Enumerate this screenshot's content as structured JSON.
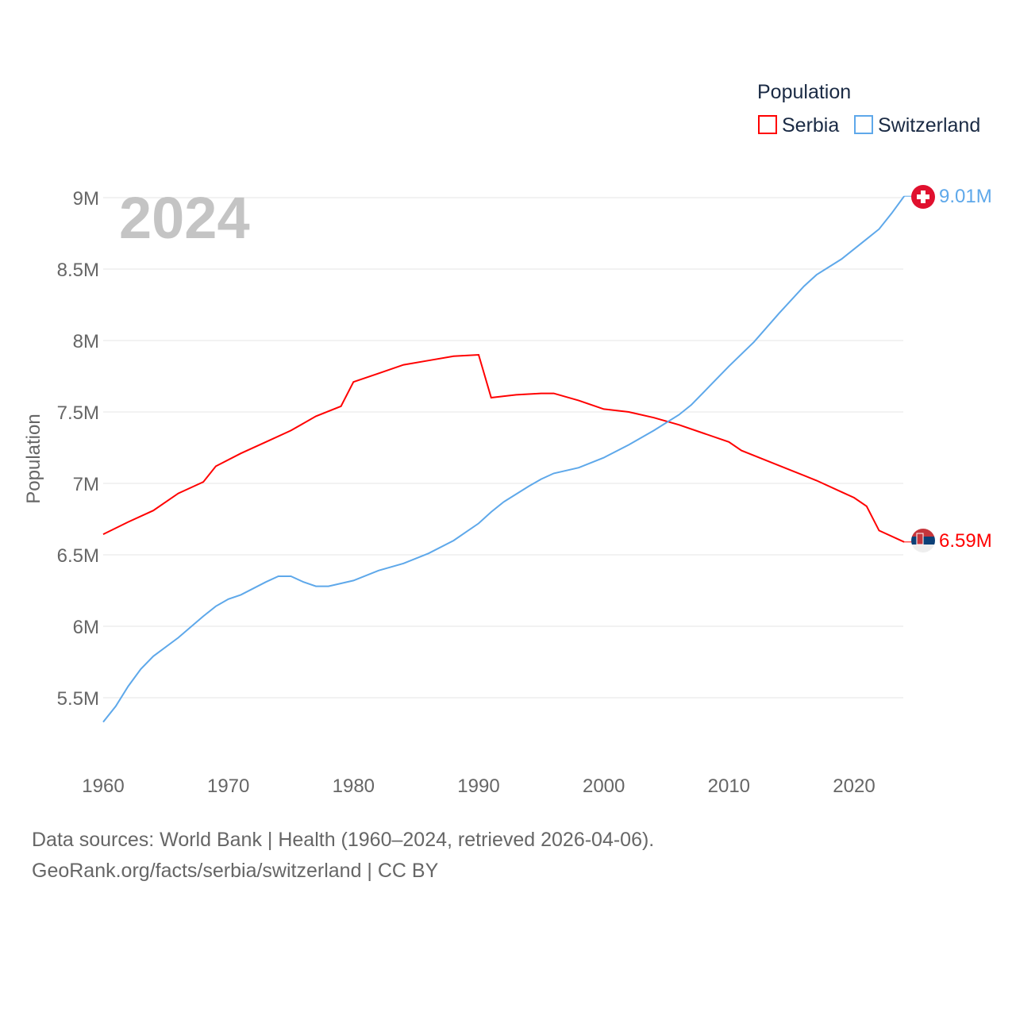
{
  "chart_data": {
    "type": "line",
    "ylabel": "Population",
    "year_label": "2024",
    "legend": {
      "title": "Population",
      "placement": "top-right"
    },
    "xlim": [
      1960,
      2024
    ],
    "ylim": [
      5.2,
      9.1
    ],
    "x_ticks": [
      {
        "v": 1960,
        "label": "1960"
      },
      {
        "v": 1970,
        "label": "1970"
      },
      {
        "v": 1980,
        "label": "1980"
      },
      {
        "v": 1990,
        "label": "1990"
      },
      {
        "v": 2000,
        "label": "2000"
      },
      {
        "v": 2010,
        "label": "2010"
      },
      {
        "v": 2020,
        "label": "2020"
      }
    ],
    "y_ticks": [
      {
        "v": 5.5,
        "label": "5.5M"
      },
      {
        "v": 6,
        "label": "6M"
      },
      {
        "v": 6.5,
        "label": "6.5M"
      },
      {
        "v": 7,
        "label": "7M"
      },
      {
        "v": 7.5,
        "label": "7.5M"
      },
      {
        "v": 8,
        "label": "8M"
      },
      {
        "v": 8.5,
        "label": "8.5M"
      },
      {
        "v": 9,
        "label": "9M"
      }
    ],
    "series": [
      {
        "name": "Serbia",
        "color": "#ff0000",
        "end_label": "6.59M",
        "unit": "millions",
        "points": [
          [
            1960,
            6.644
          ],
          [
            1962,
            6.73
          ],
          [
            1964,
            6.81
          ],
          [
            1966,
            6.93
          ],
          [
            1968,
            7.01
          ],
          [
            1969,
            7.12
          ],
          [
            1971,
            7.21
          ],
          [
            1973,
            7.29
          ],
          [
            1975,
            7.37
          ],
          [
            1977,
            7.47
          ],
          [
            1979,
            7.54
          ],
          [
            1980,
            7.71
          ],
          [
            1982,
            7.77
          ],
          [
            1984,
            7.83
          ],
          [
            1986,
            7.86
          ],
          [
            1988,
            7.89
          ],
          [
            1990,
            7.9
          ],
          [
            1991,
            7.6
          ],
          [
            1993,
            7.62
          ],
          [
            1995,
            7.63
          ],
          [
            1996,
            7.63
          ],
          [
            1998,
            7.58
          ],
          [
            2000,
            7.52
          ],
          [
            2002,
            7.5
          ],
          [
            2004,
            7.46
          ],
          [
            2006,
            7.41
          ],
          [
            2008,
            7.35
          ],
          [
            2010,
            7.29
          ],
          [
            2011,
            7.23
          ],
          [
            2013,
            7.16
          ],
          [
            2015,
            7.09
          ],
          [
            2017,
            7.02
          ],
          [
            2019,
            6.94
          ],
          [
            2020,
            6.9
          ],
          [
            2021,
            6.84
          ],
          [
            2022,
            6.67
          ],
          [
            2024,
            6.59
          ]
        ]
      },
      {
        "name": "Switzerland",
        "color": "#5ea8ea",
        "end_label": "9.01M",
        "unit": "millions",
        "points": [
          [
            1960,
            5.33
          ],
          [
            1961,
            5.44
          ],
          [
            1962,
            5.58
          ],
          [
            1963,
            5.7
          ],
          [
            1964,
            5.79
          ],
          [
            1966,
            5.92
          ],
          [
            1968,
            6.07
          ],
          [
            1969,
            6.14
          ],
          [
            1970,
            6.19
          ],
          [
            1971,
            6.22
          ],
          [
            1973,
            6.31
          ],
          [
            1974,
            6.35
          ],
          [
            1975,
            6.35
          ],
          [
            1976,
            6.31
          ],
          [
            1977,
            6.28
          ],
          [
            1978,
            6.28
          ],
          [
            1979,
            6.3
          ],
          [
            1980,
            6.32
          ],
          [
            1982,
            6.39
          ],
          [
            1984,
            6.44
          ],
          [
            1986,
            6.51
          ],
          [
            1988,
            6.6
          ],
          [
            1989,
            6.66
          ],
          [
            1990,
            6.72
          ],
          [
            1991,
            6.8
          ],
          [
            1992,
            6.87
          ],
          [
            1994,
            6.98
          ],
          [
            1995,
            7.03
          ],
          [
            1996,
            7.07
          ],
          [
            1998,
            7.11
          ],
          [
            2000,
            7.18
          ],
          [
            2002,
            7.27
          ],
          [
            2004,
            7.37
          ],
          [
            2006,
            7.48
          ],
          [
            2007,
            7.55
          ],
          [
            2009,
            7.73
          ],
          [
            2010,
            7.82
          ],
          [
            2012,
            7.99
          ],
          [
            2014,
            8.19
          ],
          [
            2016,
            8.38
          ],
          [
            2017,
            8.46
          ],
          [
            2019,
            8.57
          ],
          [
            2021,
            8.71
          ],
          [
            2022,
            8.78
          ],
          [
            2023,
            8.89
          ],
          [
            2024,
            9.01
          ]
        ]
      }
    ]
  },
  "footer": {
    "line1": "Data sources: World Bank | Health (1960–2024, retrieved 2026-04-06).",
    "line2": "GeoRank.org/facts/serbia/switzerland | CC BY"
  }
}
